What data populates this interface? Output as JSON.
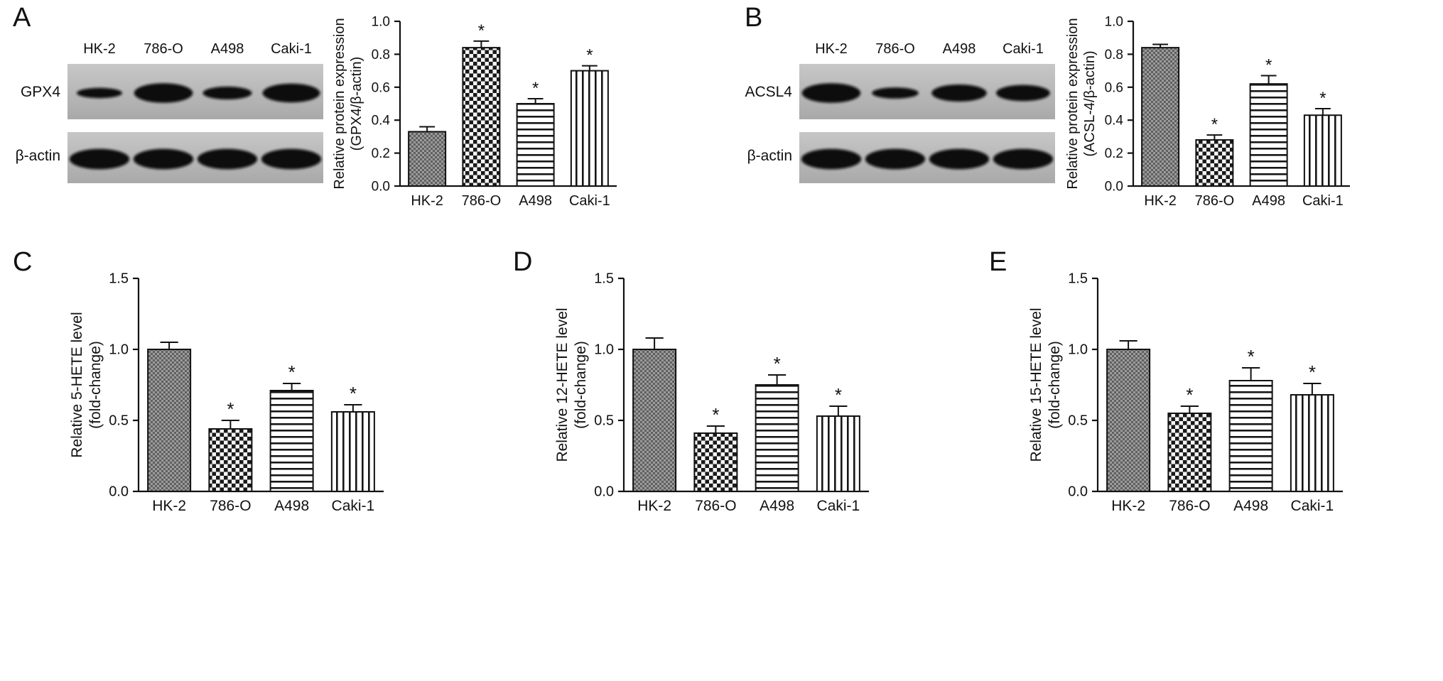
{
  "colors": {
    "background": "#ffffff",
    "bar_stroke": "#111111",
    "text": "#111111",
    "blot_background": "#b5b5b5",
    "band_color": "#0c0c0c"
  },
  "panels": {
    "A": "A",
    "B": "B",
    "C": "C",
    "D": "D",
    "E": "E"
  },
  "blots": [
    {
      "panel": "A",
      "lane_labels": [
        "HK-2",
        "786-O",
        "A498",
        "Caki-1"
      ],
      "rows": [
        {
          "label": "GPX4",
          "band_intensities": [
            0.35,
            0.9,
            0.5,
            0.85
          ]
        },
        {
          "label": "β-actin",
          "band_intensities": [
            0.95,
            0.95,
            0.95,
            0.95
          ]
        }
      ]
    },
    {
      "panel": "B",
      "lane_labels": [
        "HK-2",
        "786-O",
        "A498",
        "Caki-1"
      ],
      "rows": [
        {
          "label": "ACSL4",
          "band_intensities": [
            0.9,
            0.4,
            0.75,
            0.7
          ]
        },
        {
          "label": "β-actin",
          "band_intensities": [
            0.95,
            0.95,
            0.95,
            0.95
          ]
        }
      ]
    }
  ],
  "chart_data": [
    {
      "panel": "A",
      "type": "bar",
      "categories": [
        "HK-2",
        "786-O",
        "A498",
        "Caki-1"
      ],
      "values": [
        0.33,
        0.84,
        0.5,
        0.7
      ],
      "errors": [
        0.03,
        0.04,
        0.03,
        0.03
      ],
      "significance": [
        "",
        "*",
        "*",
        "*"
      ],
      "ylabel_lines": [
        "Relative protein expression",
        "(GPX4/β-actin)"
      ],
      "ylim": [
        0,
        1.0
      ],
      "ytick_labels": [
        "0.0",
        "0.2",
        "0.4",
        "0.6",
        "0.8",
        "1.0"
      ],
      "patterns": [
        "fine-check",
        "coarse-check",
        "h-lines",
        "v-lines"
      ],
      "grid": false,
      "legend": "none"
    },
    {
      "panel": "B",
      "type": "bar",
      "categories": [
        "HK-2",
        "786-O",
        "A498",
        "Caki-1"
      ],
      "values": [
        0.84,
        0.28,
        0.62,
        0.43
      ],
      "errors": [
        0.02,
        0.03,
        0.05,
        0.04
      ],
      "significance": [
        "",
        "*",
        "*",
        "*"
      ],
      "ylabel_lines": [
        "Relative protein expression",
        "(ACSL-4/β-actin)"
      ],
      "ylim": [
        0,
        1.0
      ],
      "ytick_labels": [
        "0.0",
        "0.2",
        "0.4",
        "0.6",
        "0.8",
        "1.0"
      ],
      "patterns": [
        "fine-check",
        "coarse-check",
        "h-lines",
        "v-lines"
      ],
      "grid": false,
      "legend": "none"
    },
    {
      "panel": "C",
      "type": "bar",
      "categories": [
        "HK-2",
        "786-O",
        "A498",
        "Caki-1"
      ],
      "values": [
        1.0,
        0.44,
        0.71,
        0.56
      ],
      "errors": [
        0.05,
        0.06,
        0.05,
        0.05
      ],
      "significance": [
        "",
        "*",
        "*",
        "*"
      ],
      "ylabel_lines": [
        "Relative 5-HETE level",
        "(fold-change)"
      ],
      "ylim": [
        0,
        1.5
      ],
      "ytick_labels": [
        "0.0",
        "0.5",
        "1.0",
        "1.5"
      ],
      "patterns": [
        "fine-check",
        "coarse-check",
        "h-lines",
        "v-lines"
      ],
      "grid": false,
      "legend": "none"
    },
    {
      "panel": "D",
      "type": "bar",
      "categories": [
        "HK-2",
        "786-O",
        "A498",
        "Caki-1"
      ],
      "values": [
        1.0,
        0.41,
        0.75,
        0.53
      ],
      "errors": [
        0.08,
        0.05,
        0.07,
        0.07
      ],
      "significance": [
        "",
        "*",
        "*",
        "*"
      ],
      "ylabel_lines": [
        "Relative 12-HETE level",
        "(fold-change)"
      ],
      "ylim": [
        0,
        1.5
      ],
      "ytick_labels": [
        "0.0",
        "0.5",
        "1.0",
        "1.5"
      ],
      "patterns": [
        "fine-check",
        "coarse-check",
        "h-lines",
        "v-lines"
      ],
      "grid": false,
      "legend": "none"
    },
    {
      "panel": "E",
      "type": "bar",
      "categories": [
        "HK-2",
        "786-O",
        "A498",
        "Caki-1"
      ],
      "values": [
        1.0,
        0.55,
        0.78,
        0.68
      ],
      "errors": [
        0.06,
        0.05,
        0.09,
        0.08
      ],
      "significance": [
        "",
        "*",
        "*",
        "*"
      ],
      "ylabel_lines": [
        "Relative 15-HETE level",
        "(fold-change)"
      ],
      "ylim": [
        0,
        1.5
      ],
      "ytick_labels": [
        "0.0",
        "0.5",
        "1.0",
        "1.5"
      ],
      "patterns": [
        "fine-check",
        "coarse-check",
        "h-lines",
        "v-lines"
      ],
      "grid": false,
      "legend": "none"
    }
  ]
}
